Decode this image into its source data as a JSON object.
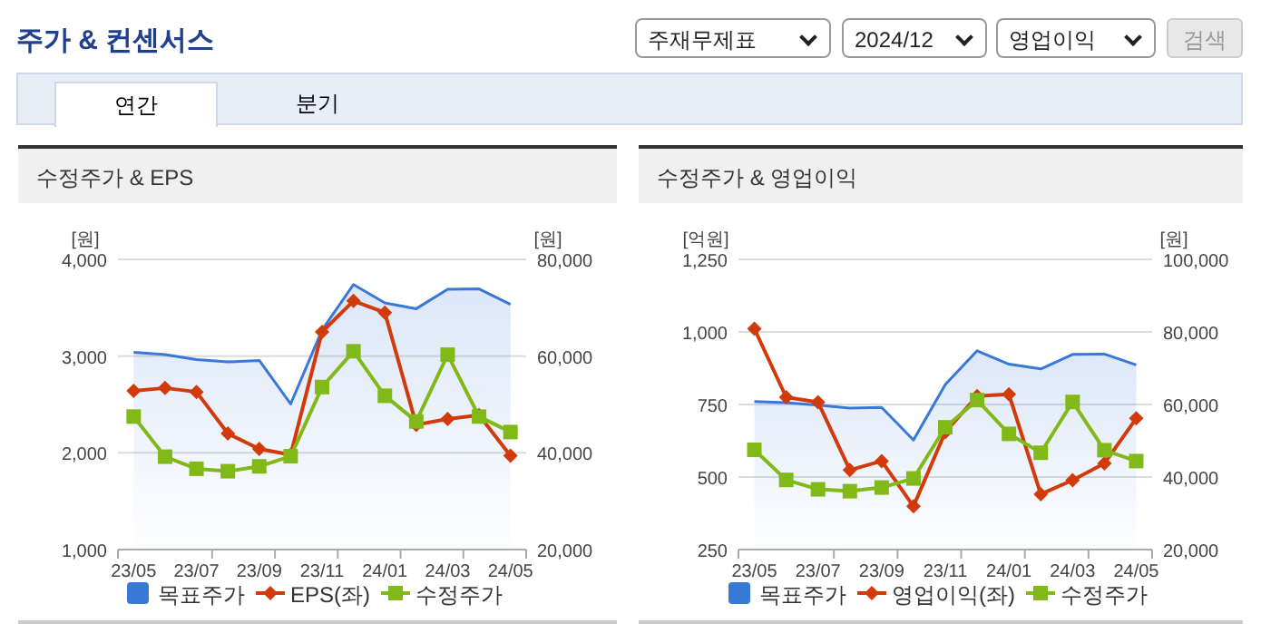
{
  "chart_data": [
    {
      "type": "line",
      "title": "수정주가 & EPS",
      "annotations": [
        "주가 & 컨센서스",
        "주재무제표",
        "2024/12",
        "영업이익",
        "검색",
        "연간",
        "분기"
      ],
      "categories": [
        "23/05",
        null,
        "23/07",
        null,
        "23/09",
        null,
        "23/11",
        null,
        "24/01",
        null,
        "24/03",
        null,
        "24/05"
      ],
      "ylabel": "[원]",
      "y2label": "[원]",
      "ylim": [
        1000,
        4000
      ],
      "yticks": [
        {
          "value": 1000,
          "label": "1,000"
        },
        {
          "value": 2000,
          "label": "2,000"
        },
        {
          "value": 3000,
          "label": "3,000"
        },
        {
          "value": 4000,
          "label": "4,000"
        }
      ],
      "y2lim": [
        20000,
        80000
      ],
      "y2ticks": [
        {
          "value": 20000,
          "label": "20,000"
        },
        {
          "value": 40000,
          "label": "40,000"
        },
        {
          "value": 60000,
          "label": "60,000"
        },
        {
          "value": 80000,
          "label": "80,000"
        }
      ],
      "grid": "y",
      "legend": "bottom",
      "series": [
        {
          "name": "목표주가",
          "type": "area",
          "axis": "y2",
          "color": "#3a78d8",
          "values": [
            60800,
            60300,
            59300,
            58800,
            59100,
            50100,
            65400,
            74800,
            71000,
            69800,
            73800,
            73900,
            70700
          ]
        },
        {
          "name": "EPS(좌)",
          "marker": "diamond",
          "color": "#d23a0c",
          "values": [
            2640,
            2670,
            2630,
            2200,
            2040,
            1980,
            3250,
            3570,
            3450,
            2290,
            2350,
            2390,
            1970
          ]
        },
        {
          "name": "수정주가",
          "marker": "square",
          "axis": "y2",
          "color": "#80b918",
          "values": [
            47500,
            39200,
            36700,
            36200,
            37200,
            39300,
            53600,
            61000,
            51800,
            46500,
            60300,
            47500,
            44300
          ]
        }
      ]
    },
    {
      "type": "line",
      "title": "수정주가 & 영업이익",
      "categories": [
        "23/05",
        null,
        "23/07",
        null,
        "23/09",
        null,
        "23/11",
        null,
        "24/01",
        null,
        "24/03",
        null,
        "24/05"
      ],
      "ylabel": "[억원]",
      "y2label": "[원]",
      "ylim": [
        250,
        1250
      ],
      "yticks": [
        250,
        500,
        750,
        {
          "value": 1000,
          "label": "1,000"
        },
        {
          "value": 1250,
          "label": "1,250"
        }
      ],
      "y2lim": [
        20000,
        100000
      ],
      "y2ticks": [
        {
          "value": 20000,
          "label": "20,000"
        },
        {
          "value": 40000,
          "label": "40,000"
        },
        {
          "value": 60000,
          "label": "60,000"
        },
        {
          "value": 80000,
          "label": "80,000"
        },
        {
          "value": 100000,
          "label": "100,000"
        }
      ],
      "grid": "y",
      "legend": "bottom",
      "series": [
        {
          "name": "목표주가",
          "type": "area",
          "axis": "y2",
          "color": "#3a78d8",
          "values": [
            60800,
            60500,
            59800,
            59000,
            59200,
            50200,
            65500,
            74800,
            71100,
            69800,
            73800,
            73900,
            70900
          ]
        },
        {
          "name": "영업이익(좌)",
          "marker": "diamond",
          "color": "#d23a0c",
          "values": [
            1011,
            775,
            758,
            524,
            555,
            399,
            655,
            779,
            785,
            441,
            489,
            547,
            702
          ]
        },
        {
          "name": "수정주가",
          "marker": "square",
          "axis": "y2",
          "color": "#80b918",
          "values": [
            47500,
            39200,
            36600,
            36100,
            37100,
            39600,
            53700,
            61200,
            51900,
            46700,
            60700,
            47400,
            44400
          ]
        }
      ]
    }
  ]
}
